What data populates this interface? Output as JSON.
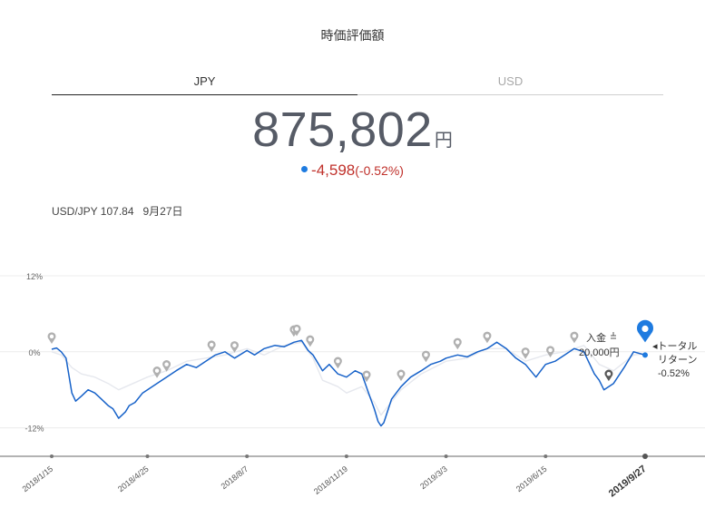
{
  "header": {
    "title": "時価評価額"
  },
  "tabs": [
    {
      "label": "JPY",
      "active": true
    },
    {
      "label": "USD",
      "active": false
    }
  ],
  "summary": {
    "value": "875,802",
    "unit": "円",
    "change": "-4,598",
    "change_pct": "(-0.52%)"
  },
  "fx": {
    "pair": "USD/JPY 107.84",
    "date": "9月27日"
  },
  "annotations": {
    "deposit_label": "入金",
    "deposit_amount": "20,000円",
    "total_return_label_1": "◂トータル",
    "total_return_label_2": "リターン",
    "total_return_value": "-0.52%"
  },
  "colors": {
    "primary_line": "#1762c9",
    "secondary_line": "#e6e8ee",
    "marker_gray": "#b0b0b0",
    "marker_dark": "#5a5a5a",
    "current_marker": "#1e7be0",
    "negative": "#c0312b"
  },
  "chart_data": {
    "type": "line",
    "x_tick_labels": [
      "2018/1/15",
      "2018/4/25",
      "2018/8/7",
      "2018/11/19",
      "2019/3/3",
      "2019/6/15",
      "2019/9/27"
    ],
    "x_tick_dates": [
      "2018-01-15",
      "2018-04-25",
      "2018-08-07",
      "2018-11-19",
      "2019-03-03",
      "2019-06-15",
      "2019-09-27"
    ],
    "y_tick_labels": [
      "12%",
      "0%",
      "-12%"
    ],
    "y_ticks": [
      12,
      0,
      -12
    ],
    "ylim": [
      -16.5,
      14
    ],
    "grid": true,
    "series": [
      {
        "role": "portfolio",
        "x": [
          "2018-01-15",
          "2018-01-20",
          "2018-01-25",
          "2018-01-30",
          "2018-02-05",
          "2018-02-09",
          "2018-02-15",
          "2018-02-22",
          "2018-03-01",
          "2018-03-08",
          "2018-03-15",
          "2018-03-20",
          "2018-03-26",
          "2018-04-02",
          "2018-04-06",
          "2018-04-12",
          "2018-04-20",
          "2018-04-25",
          "2018-05-05",
          "2018-05-15",
          "2018-05-25",
          "2018-06-05",
          "2018-06-15",
          "2018-06-25",
          "2018-07-05",
          "2018-07-15",
          "2018-07-25",
          "2018-08-07",
          "2018-08-15",
          "2018-08-25",
          "2018-09-05",
          "2018-09-15",
          "2018-09-25",
          "2018-10-03",
          "2018-10-10",
          "2018-10-15",
          "2018-10-25",
          "2018-11-01",
          "2018-11-10",
          "2018-11-19",
          "2018-11-28",
          "2018-12-05",
          "2018-12-12",
          "2018-12-18",
          "2018-12-22",
          "2018-12-25",
          "2018-12-28",
          "2019-01-05",
          "2019-01-15",
          "2019-01-25",
          "2019-02-05",
          "2019-02-15",
          "2019-02-25",
          "2019-03-03",
          "2019-03-15",
          "2019-03-25",
          "2019-04-05",
          "2019-04-15",
          "2019-04-25",
          "2019-05-05",
          "2019-05-15",
          "2019-05-25",
          "2019-06-05",
          "2019-06-15",
          "2019-06-25",
          "2019-07-05",
          "2019-07-15",
          "2019-07-25",
          "2019-08-05",
          "2019-08-10",
          "2019-08-15",
          "2019-08-25",
          "2019-09-05",
          "2019-09-15",
          "2019-09-27"
        ],
        "y": [
          0.4,
          0.6,
          0.0,
          -1.0,
          -6.5,
          -7.8,
          -7.0,
          -6.0,
          -6.5,
          -7.5,
          -8.5,
          -9.0,
          -10.5,
          -9.5,
          -8.5,
          -8.0,
          -6.5,
          -6.0,
          -5.0,
          -4.0,
          -3.0,
          -2.0,
          -2.5,
          -1.5,
          -0.5,
          0.0,
          -1.0,
          0.2,
          -0.5,
          0.5,
          1.0,
          0.8,
          1.5,
          1.8,
          0.2,
          -0.5,
          -3.0,
          -2.0,
          -3.5,
          -4.0,
          -3.0,
          -3.5,
          -6.5,
          -9.0,
          -11.0,
          -11.7,
          -11.2,
          -7.5,
          -5.5,
          -4.0,
          -3.0,
          -2.0,
          -1.5,
          -1.0,
          -0.5,
          -0.8,
          0.0,
          0.5,
          1.5,
          0.5,
          -1.0,
          -2.0,
          -4.0,
          -2.0,
          -1.5,
          -0.5,
          0.5,
          0.0,
          -3.5,
          -4.5,
          -6.0,
          -5.0,
          -2.5,
          0.0,
          -0.52
        ]
      },
      {
        "role": "comparison",
        "x": [
          "2018-01-15",
          "2018-01-25",
          "2018-02-05",
          "2018-02-15",
          "2018-03-01",
          "2018-03-15",
          "2018-03-26",
          "2018-04-10",
          "2018-04-25",
          "2018-05-15",
          "2018-06-05",
          "2018-06-25",
          "2018-07-15",
          "2018-08-07",
          "2018-08-25",
          "2018-09-15",
          "2018-10-03",
          "2018-10-15",
          "2018-10-25",
          "2018-11-10",
          "2018-11-19",
          "2018-12-05",
          "2018-12-18",
          "2018-12-25",
          "2019-01-15",
          "2019-02-05",
          "2019-03-03",
          "2019-03-25",
          "2019-04-15",
          "2019-05-05",
          "2019-05-25",
          "2019-06-15",
          "2019-07-05",
          "2019-07-25",
          "2019-08-10",
          "2019-08-25",
          "2019-09-15",
          "2019-09-27"
        ],
        "y": [
          0.0,
          -0.5,
          -2.5,
          -3.5,
          -4.0,
          -5.0,
          -6.0,
          -5.0,
          -4.0,
          -3.0,
          -1.5,
          -1.0,
          -0.5,
          0.5,
          -0.5,
          1.0,
          1.5,
          -1.0,
          -4.5,
          -5.5,
          -6.5,
          -5.5,
          -8.0,
          -10.0,
          -6.0,
          -3.5,
          -1.5,
          -1.0,
          0.5,
          0.5,
          -1.5,
          -0.5,
          0.0,
          1.0,
          -2.0,
          -3.0,
          -0.5,
          -0.3
        ]
      }
    ],
    "event_markers_gray": [
      "2018-01-15",
      "2018-05-05",
      "2018-05-15",
      "2018-07-01",
      "2018-07-25",
      "2018-09-25",
      "2018-09-28",
      "2018-10-12",
      "2018-11-10",
      "2018-12-10",
      "2019-01-15",
      "2019-02-10",
      "2019-03-15",
      "2019-04-15",
      "2019-05-25",
      "2019-06-20",
      "2019-07-15"
    ],
    "event_markers_dark": [
      "2019-08-20"
    ],
    "current_point": {
      "x": "2019-09-27",
      "y": -0.52
    }
  }
}
